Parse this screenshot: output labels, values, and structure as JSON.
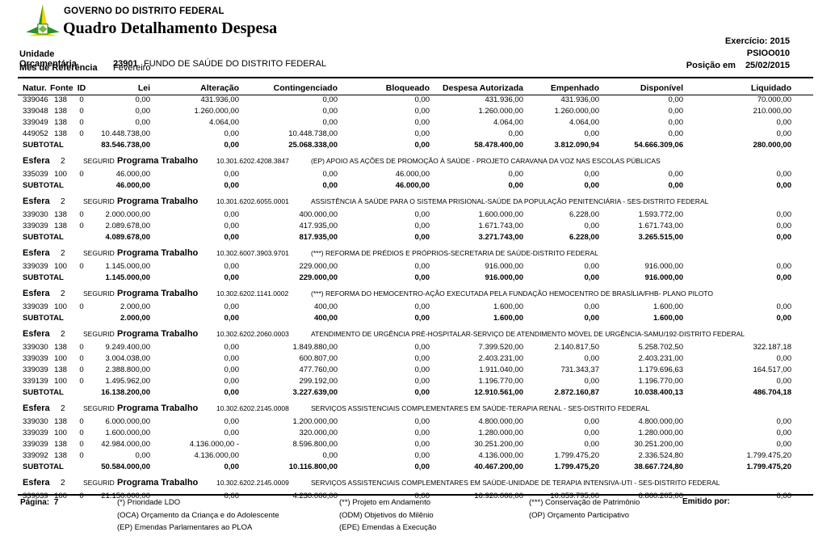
{
  "header": {
    "org": "GOVERNO DO DISTRITO FEDERAL",
    "title": "Quadro Detalhamento Despesa",
    "exercicio": "Exercício: 2015",
    "report_code": "PSIOO010",
    "posicao_label": "Posição em",
    "posicao_date": "25/02/2015",
    "unidade_label": "Unidade Orçamentária",
    "unidade_code": "23901",
    "unidade_name": "FUNDO DE SAÚDE DO DISTRITO FEDERAL",
    "mes_label": "Mês de Referência",
    "mes_value": "Fevereiro"
  },
  "table": {
    "columns": [
      "Natur.",
      "Fonte",
      "ID",
      "Lei",
      "Alteração",
      "Contingenciado",
      "Bloqueado",
      "Despesa Autorizada",
      "Empenhado",
      "Disponível",
      "Liquidado"
    ],
    "esfera_label": "Esfera",
    "programa_label": "Programa Trabalho",
    "subtotal_label": "SUBTOTAL",
    "blocks": [
      {
        "esfera": null,
        "rows": [
          [
            "339046",
            "138",
            "0",
            "0,00",
            "431.936,00",
            "0,00",
            "0,00",
            "431.936,00",
            "431.936,00",
            "0,00",
            "70.000,00"
          ],
          [
            "339048",
            "138",
            "0",
            "0,00",
            "1.260.000,00",
            "0,00",
            "0,00",
            "1.260.000,00",
            "1.260.000,00",
            "0,00",
            "210.000,00"
          ],
          [
            "339049",
            "138",
            "0",
            "0,00",
            "4.064,00",
            "0,00",
            "0,00",
            "4.064,00",
            "4.064,00",
            "0,00",
            "0,00"
          ],
          [
            "449052",
            "138",
            "0",
            "10.448.738,00",
            "0,00",
            "10.448.738,00",
            "0,00",
            "0,00",
            "0,00",
            "0,00",
            "0,00"
          ]
        ],
        "subtotal": [
          "83.546.738,00",
          "0,00",
          "25.068.338,00",
          "0,00",
          "58.478.400,00",
          "3.812.090,94",
          "54.666.309,06",
          "280.000,00"
        ]
      },
      {
        "esfera": {
          "num": "2",
          "seg": "SEGURID",
          "code": "10.301.6202.4208.3847",
          "desc": "(EP)  APOIO AS AÇÕES DE PROMOÇÃO À SAÚDE - PROJETO CARAVANA DA VOZ NAS ESCOLAS PÚBLICAS"
        },
        "rows": [
          [
            "335039",
            "100",
            "0",
            "46.000,00",
            "0,00",
            "0,00",
            "46.000,00",
            "0,00",
            "0,00",
            "0,00",
            "0,00"
          ]
        ],
        "subtotal": [
          "46.000,00",
          "0,00",
          "0,00",
          "46.000,00",
          "0,00",
          "0,00",
          "0,00",
          "0,00"
        ]
      },
      {
        "esfera": {
          "num": "2",
          "seg": "SEGURID",
          "code": "10.301.6202.6055.0001",
          "desc": "ASSISTÊNCIA À SAÚDE PARA O SISTEMA PRISIONAL-SAÚDE DA POPULAÇÃO PENITENCIÁRIA - SES-DISTRITO FEDERAL"
        },
        "rows": [
          [
            "339030",
            "138",
            "0",
            "2.000.000,00",
            "0,00",
            "400.000,00",
            "0,00",
            "1.600.000,00",
            "6.228,00",
            "1.593.772,00",
            "0,00"
          ],
          [
            "339039",
            "138",
            "0",
            "2.089.678,00",
            "0,00",
            "417.935,00",
            "0,00",
            "1.671.743,00",
            "0,00",
            "1.671.743,00",
            "0,00"
          ]
        ],
        "subtotal": [
          "4.089.678,00",
          "0,00",
          "817.935,00",
          "0,00",
          "3.271.743,00",
          "6.228,00",
          "3.265.515,00",
          "0,00"
        ]
      },
      {
        "esfera": {
          "num": "2",
          "seg": "SEGURID",
          "code": "10.302.6007.3903.9701",
          "desc": "(***) REFORMA DE PRÉDIOS E PRÓPRIOS-SECRETARIA DE SAÚDE-DISTRITO FEDERAL"
        },
        "rows": [
          [
            "339039",
            "100",
            "0",
            "1.145.000,00",
            "0,00",
            "229.000,00",
            "0,00",
            "916.000,00",
            "0,00",
            "916.000,00",
            "0,00"
          ]
        ],
        "subtotal": [
          "1.145.000,00",
          "0,00",
          "229.000,00",
          "0,00",
          "916.000,00",
          "0,00",
          "916.000,00",
          "0,00"
        ]
      },
      {
        "esfera": {
          "num": "2",
          "seg": "SEGURID",
          "code": "10.302.6202.1141.0002",
          "desc": "(***) REFORMA DO HEMOCENTRO-AÇÃO EXECUTADA PELA FUNDAÇÃO HEMOCENTRO DE BRASÍLIA/FHB- PLANO PILOTO"
        },
        "rows": [
          [
            "339039",
            "100",
            "0",
            "2.000,00",
            "0,00",
            "400,00",
            "0,00",
            "1.600,00",
            "0,00",
            "1.600,00",
            "0,00"
          ]
        ],
        "subtotal": [
          "2.000,00",
          "0,00",
          "400,00",
          "0,00",
          "1.600,00",
          "0,00",
          "1.600,00",
          "0,00"
        ]
      },
      {
        "esfera": {
          "num": "2",
          "seg": "SEGURID",
          "code": "10.302.6202.2060.0003",
          "desc": "ATENDIMENTO DE URGÊNCIA PRÉ-HOSPITALAR-SERVIÇO DE ATENDIMENTO MÓVEL DE URGÊNCIA-SAMU/192-DISTRITO FEDERAL"
        },
        "rows": [
          [
            "339030",
            "138",
            "0",
            "9.249.400,00",
            "0,00",
            "1.849.880,00",
            "0,00",
            "7.399.520,00",
            "2.140.817,50",
            "5.258.702,50",
            "322.187,18"
          ],
          [
            "339039",
            "100",
            "0",
            "3.004.038,00",
            "0,00",
            "600.807,00",
            "0,00",
            "2.403.231,00",
            "0,00",
            "2.403.231,00",
            "0,00"
          ],
          [
            "339039",
            "138",
            "0",
            "2.388.800,00",
            "0,00",
            "477.760,00",
            "0,00",
            "1.911.040,00",
            "731.343,37",
            "1.179.696,63",
            "164.517,00"
          ],
          [
            "339139",
            "100",
            "0",
            "1.495.962,00",
            "0,00",
            "299.192,00",
            "0,00",
            "1.196.770,00",
            "0,00",
            "1.196.770,00",
            "0,00"
          ]
        ],
        "subtotal": [
          "16.138.200,00",
          "0,00",
          "3.227.639,00",
          "0,00",
          "12.910.561,00",
          "2.872.160,87",
          "10.038.400,13",
          "486.704,18"
        ]
      },
      {
        "esfera": {
          "num": "2",
          "seg": "SEGURID",
          "code": "10.302.6202.2145.0008",
          "desc": "SERVIÇOS ASSISTENCIAIS COMPLEMENTARES EM SAÚDE-TERAPIA RENAL - SES-DISTRITO FEDERAL"
        },
        "rows": [
          [
            "339030",
            "138",
            "0",
            "6.000.000,00",
            "0,00",
            "1.200.000,00",
            "0,00",
            "4.800.000,00",
            "0,00",
            "4.800.000,00",
            "0,00"
          ],
          [
            "339039",
            "100",
            "0",
            "1.600.000,00",
            "0,00",
            "320.000,00",
            "0,00",
            "1.280.000,00",
            "0,00",
            "1.280.000,00",
            "0,00"
          ],
          [
            "339039",
            "138",
            "0",
            "42.984.000,00",
            "4.136.000,00 -",
            "8.596.800,00",
            "0,00",
            "30.251.200,00",
            "0,00",
            "30.251.200,00",
            "0,00"
          ],
          [
            "339092",
            "138",
            "0",
            "0,00",
            "4.136.000,00",
            "0,00",
            "0,00",
            "4.136.000,00",
            "1.799.475,20",
            "2.336.524,80",
            "1.799.475,20"
          ]
        ],
        "subtotal": [
          "50.584.000,00",
          "0,00",
          "10.116.800,00",
          "0,00",
          "40.467.200,00",
          "1.799.475,20",
          "38.667.724,80",
          "1.799.475,20"
        ]
      },
      {
        "esfera": {
          "num": "2",
          "seg": "SEGURID",
          "code": "10.302.6202.2145.0009",
          "desc": "SERVIÇOS ASSISTENCIAIS COMPLEMENTARES EM SAÚDE-UNIDADE DE TERAPIA INTENSIVA-UTI - SES-DISTRITO FEDERAL"
        },
        "rows": [
          [
            "339039",
            "100",
            "0",
            "21.150.000,00",
            "0,00",
            "4.230.000,00",
            "0,00",
            "16.920.000,00",
            "10.059.795,00",
            "6.860.205,00",
            "0,00"
          ]
        ],
        "subtotal": null
      }
    ]
  },
  "footer": {
    "pagina_label": "Página:",
    "pagina_value": "7",
    "legend_col1": [
      "(*)  Prioridade LDO",
      "(OCA)  Orçamento da Criança e do Adolescente",
      "(EP)  Emendas Parlamentares ao PLOA"
    ],
    "legend_col2": [
      "(**)  Projeto em Andamento",
      "(ODM) Objetivos do Milênio",
      "(EPE) Emendas à Execução"
    ],
    "legend_col3": [
      "(***)  Conservação de Patrimônio",
      "(OP) Orçamento Participativo"
    ],
    "emitido_label": "Emitido por:"
  }
}
